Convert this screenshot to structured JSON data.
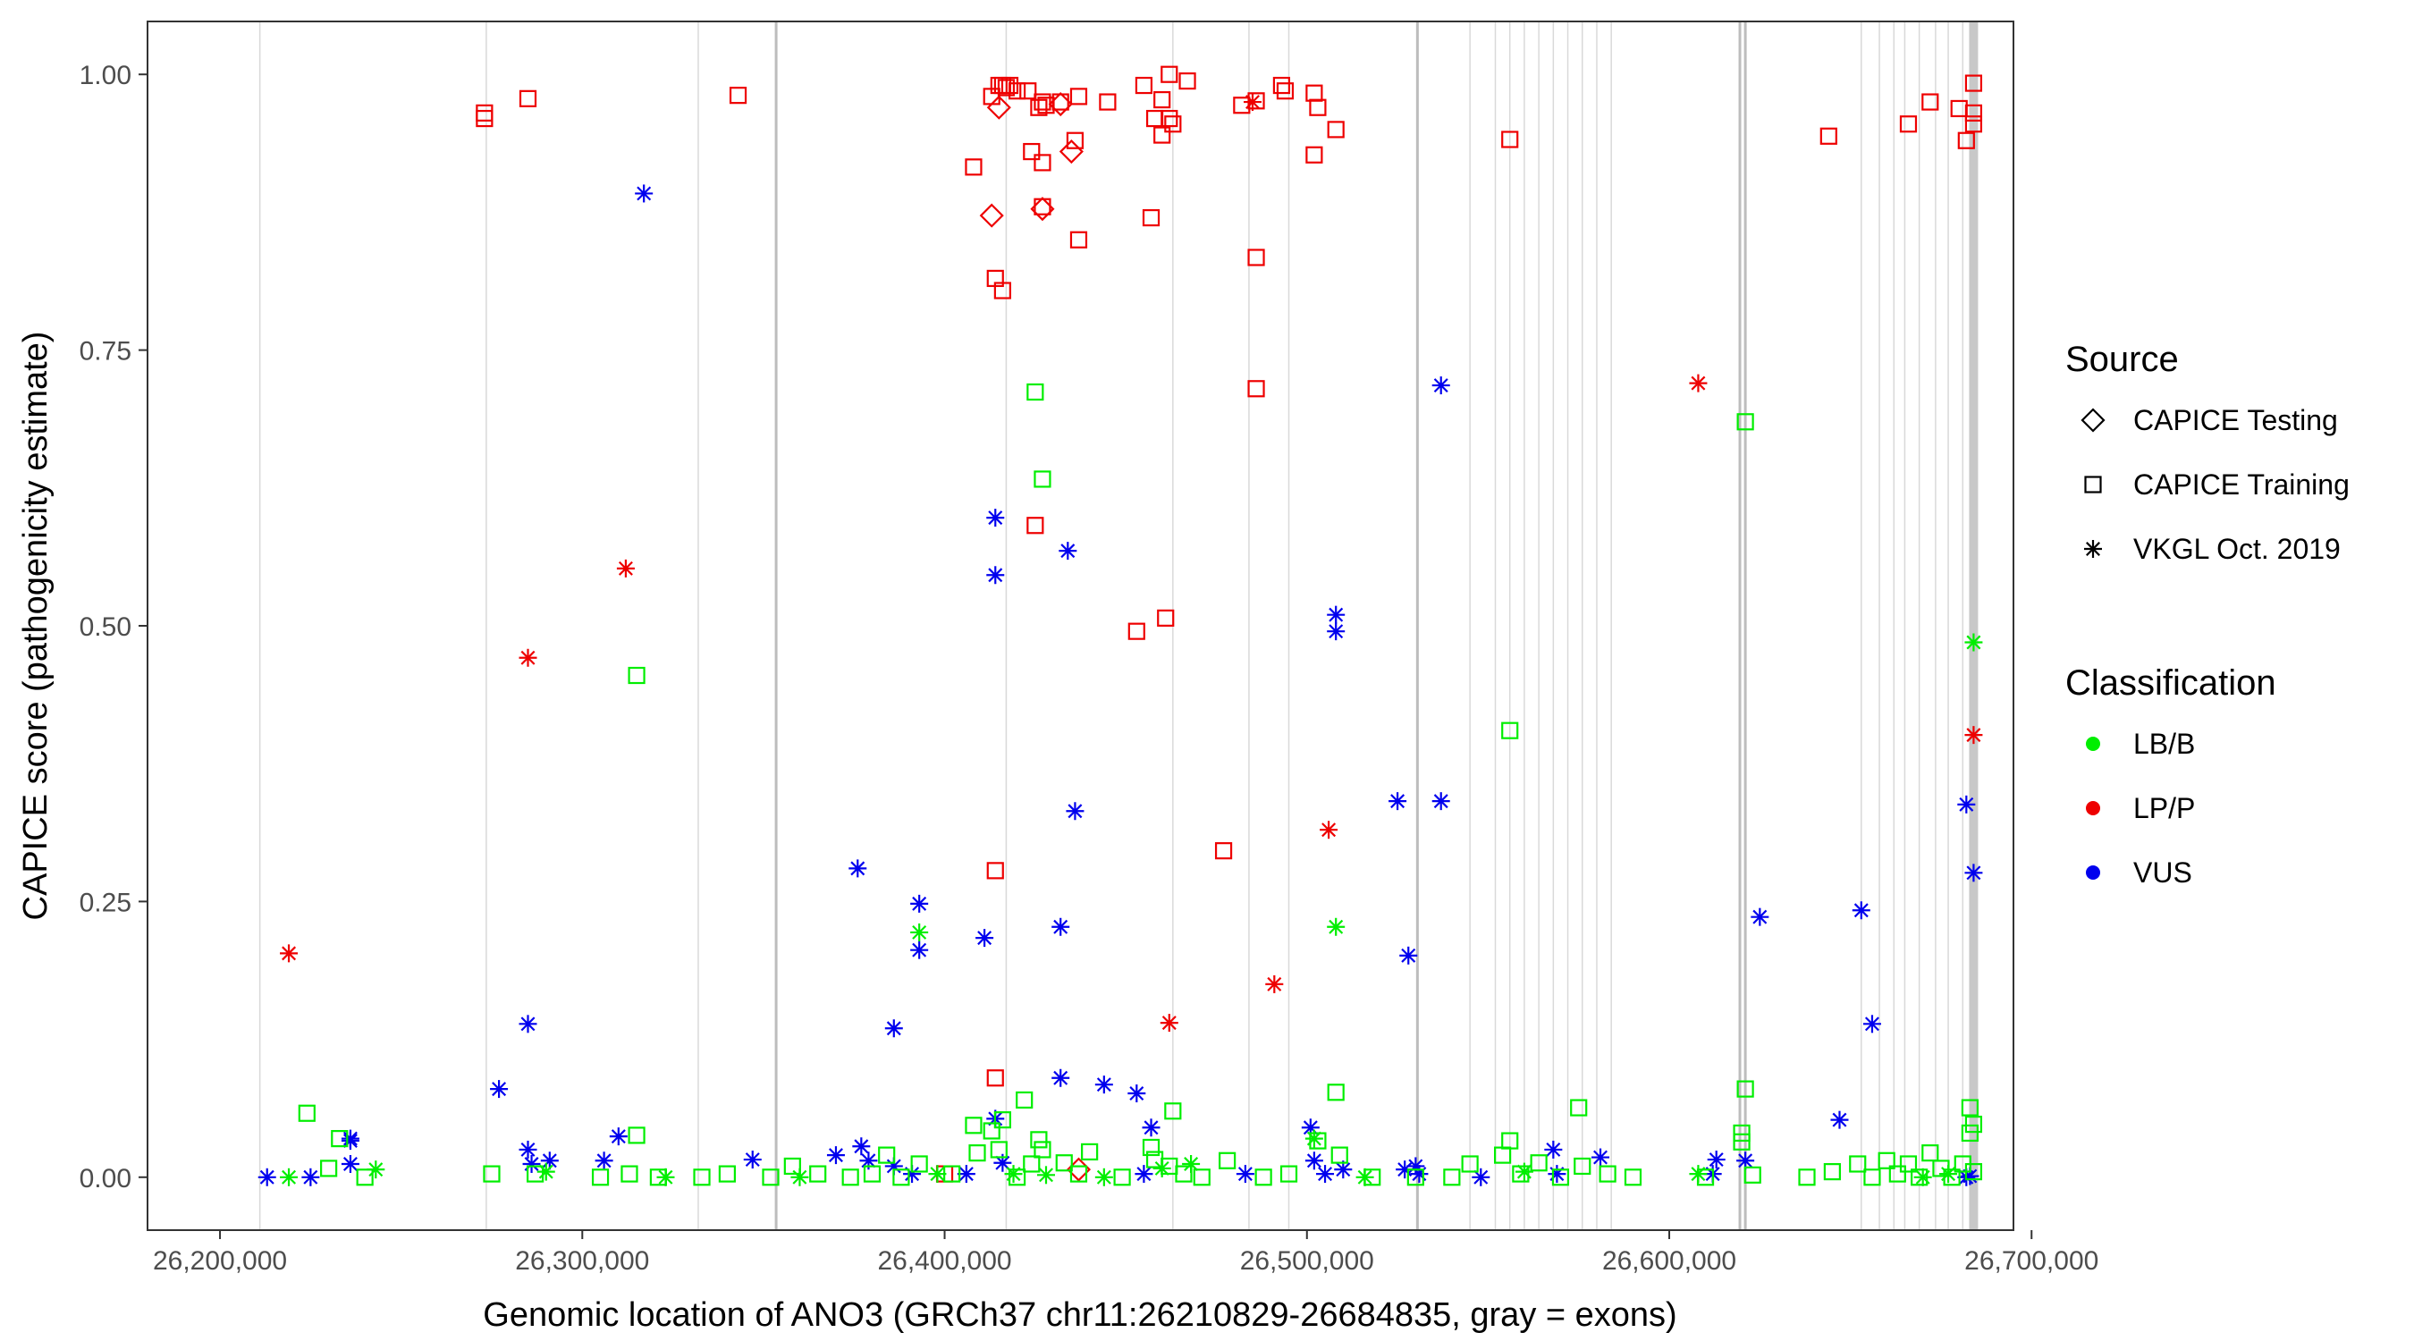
{
  "chart_data": {
    "type": "scatter",
    "title": "",
    "xlabel": "Genomic location of ANO3 (GRCh37 chr11:26210829-26684835, gray = exons)",
    "ylabel": "CAPICE score (pathogenicity estimate)",
    "xlim": [
      26180000,
      26695000
    ],
    "ylim": [
      -0.048,
      1.048
    ],
    "x_ticks": [
      {
        "value": 26200000,
        "label": "26,200,000"
      },
      {
        "value": 26300000,
        "label": "26,300,000"
      },
      {
        "value": 26400000,
        "label": "26,400,000"
      },
      {
        "value": 26500000,
        "label": "26,500,000"
      },
      {
        "value": 26600000,
        "label": "26,600,000"
      },
      {
        "value": 26700000,
        "label": "26,700,000"
      }
    ],
    "y_ticks": [
      {
        "value": 0,
        "label": "0.00"
      },
      {
        "value": 0.25,
        "label": "0.25"
      },
      {
        "value": 0.5,
        "label": "0.50"
      },
      {
        "value": 0.75,
        "label": "0.75"
      },
      {
        "value": 1,
        "label": "1.00"
      }
    ],
    "exons": [
      26211000,
      26273500,
      26332000,
      26353500,
      26417000,
      26463000,
      26484000,
      26495000,
      26530500,
      26545000,
      26552000,
      26556000,
      26560000,
      26564000,
      26568000,
      26572000,
      26576000,
      26580000,
      26584000,
      26619500,
      26621000,
      26653000,
      26658000,
      26662000,
      26665000,
      26669000,
      26673500,
      26677000,
      26681000,
      26684000
    ],
    "exon_colors": {
      "line": "#d9d9d9",
      "strong": "#bdbdbd",
      "band": "#c8c8c8"
    },
    "legend": {
      "source_title": "Source",
      "source_items": [
        {
          "shape": "diamond",
          "label": "CAPICE Testing"
        },
        {
          "shape": "square",
          "label": "CAPICE Training"
        },
        {
          "shape": "asterisk",
          "label": "VKGL Oct. 2019"
        }
      ],
      "class_title": "Classification",
      "class_items": [
        {
          "key": "LB/B",
          "label": "LB/B",
          "color": "#00ee00"
        },
        {
          "key": "LP/P",
          "label": "LP/P",
          "color": "#ee0000"
        },
        {
          "key": "VUS",
          "label": "VUS",
          "color": "#0000ee"
        }
      ]
    },
    "series": [
      {
        "name": "CAPICE Training LP/P",
        "source": "CAPICE Training",
        "classification": "LP/P",
        "shape": "square",
        "color": "#ee0000",
        "points": [
          [
            26273000,
            0.965
          ],
          [
            26273000,
            0.96
          ],
          [
            26285000,
            0.978
          ],
          [
            26343000,
            0.981
          ],
          [
            26408000,
            0.916
          ],
          [
            26413000,
            0.98
          ],
          [
            26415000,
            0.99
          ],
          [
            26416000,
            0.99
          ],
          [
            26417000,
            0.988
          ],
          [
            26418000,
            0.99
          ],
          [
            26420000,
            0.985
          ],
          [
            26423000,
            0.985
          ],
          [
            26424000,
            0.93
          ],
          [
            26426000,
            0.97
          ],
          [
            26427000,
            0.92
          ],
          [
            26427000,
            0.975
          ],
          [
            26428000,
            0.972
          ],
          [
            26427000,
            0.88
          ],
          [
            26432000,
            0.975
          ],
          [
            26436000,
            0.94
          ],
          [
            26437000,
            0.98
          ],
          [
            26437000,
            0.85
          ],
          [
            26445000,
            0.975
          ],
          [
            26455000,
            0.99
          ],
          [
            26457000,
            0.87
          ],
          [
            26458000,
            0.96
          ],
          [
            26460000,
            0.945
          ],
          [
            26460000,
            0.977
          ],
          [
            26462000,
            1.0
          ],
          [
            26463000,
            0.955
          ],
          [
            26462000,
            0.96
          ],
          [
            26467000,
            0.994
          ],
          [
            26482000,
            0.972
          ],
          [
            26486000,
            0.976
          ],
          [
            26493000,
            0.99
          ],
          [
            26494000,
            0.985
          ],
          [
            26502000,
            0.983
          ],
          [
            26502000,
            0.927
          ],
          [
            26503000,
            0.97
          ],
          [
            26508000,
            0.95
          ],
          [
            26556000,
            0.941
          ],
          [
            26644000,
            0.944
          ],
          [
            26666000,
            0.955
          ],
          [
            26672000,
            0.975
          ],
          [
            26680000,
            0.969
          ],
          [
            26682000,
            0.94
          ],
          [
            26684000,
            0.992
          ],
          [
            26684000,
            0.965
          ],
          [
            26684000,
            0.955
          ],
          [
            26414000,
            0.815
          ],
          [
            26416000,
            0.804
          ],
          [
            26486000,
            0.834
          ],
          [
            26486000,
            0.715
          ],
          [
            26425000,
            0.591
          ],
          [
            26453000,
            0.495
          ],
          [
            26461000,
            0.507
          ],
          [
            26477000,
            0.296
          ],
          [
            26414000,
            0.278
          ],
          [
            26414000,
            0.09
          ],
          [
            26400000,
            0.003
          ]
        ]
      },
      {
        "name": "CAPICE Testing LP/P",
        "source": "CAPICE Testing",
        "classification": "LP/P",
        "shape": "diamond",
        "color": "#ee0000",
        "points": [
          [
            26415000,
            0.97
          ],
          [
            26435000,
            0.93
          ],
          [
            26413000,
            0.872
          ],
          [
            26427000,
            0.878
          ],
          [
            26437000,
            0.007
          ],
          [
            26432000,
            0.973
          ]
        ]
      },
      {
        "name": "VKGL Oct. 2019 LP/P",
        "source": "VKGL Oct. 2019",
        "classification": "LP/P",
        "shape": "asterisk",
        "color": "#ee0000",
        "points": [
          [
            26485000,
            0.975
          ],
          [
            26312000,
            0.552
          ],
          [
            26285000,
            0.471
          ],
          [
            26219000,
            0.203
          ],
          [
            26608000,
            0.72
          ],
          [
            26506000,
            0.315
          ],
          [
            26491000,
            0.175
          ],
          [
            26462000,
            0.14
          ],
          [
            26684000,
            0.401
          ]
        ]
      },
      {
        "name": "VKGL Oct. 2019 VUS",
        "source": "VKGL Oct. 2019",
        "classification": "VUS",
        "shape": "asterisk",
        "color": "#0000ee",
        "points": [
          [
            26317000,
            0.892
          ],
          [
            26537000,
            0.718
          ],
          [
            26414000,
            0.598
          ],
          [
            26434000,
            0.568
          ],
          [
            26414000,
            0.546
          ],
          [
            26508000,
            0.51
          ],
          [
            26508000,
            0.495
          ],
          [
            26436000,
            0.332
          ],
          [
            26525000,
            0.341
          ],
          [
            26537000,
            0.341
          ],
          [
            26682000,
            0.338
          ],
          [
            26684000,
            0.276
          ],
          [
            26376000,
            0.28
          ],
          [
            26393000,
            0.248
          ],
          [
            26393000,
            0.206
          ],
          [
            26411000,
            0.217
          ],
          [
            26432000,
            0.227
          ],
          [
            26528000,
            0.201
          ],
          [
            26625000,
            0.236
          ],
          [
            26653000,
            0.242
          ],
          [
            26386000,
            0.135
          ],
          [
            26285000,
            0.139
          ],
          [
            26656000,
            0.139
          ],
          [
            26277000,
            0.08
          ],
          [
            26432000,
            0.09
          ],
          [
            26444000,
            0.084
          ],
          [
            26453000,
            0.076
          ],
          [
            26414000,
            0.053
          ],
          [
            26457000,
            0.045
          ],
          [
            26647000,
            0.052
          ],
          [
            26501000,
            0.045
          ],
          [
            26236000,
            0.035
          ],
          [
            26236000,
            0.033
          ],
          [
            26310000,
            0.037
          ],
          [
            26285000,
            0.025
          ],
          [
            26213000,
            0.0
          ],
          [
            26225000,
            0.0
          ],
          [
            26236000,
            0.012
          ],
          [
            26286000,
            0.012
          ],
          [
            26291000,
            0.015
          ],
          [
            26306000,
            0.015
          ],
          [
            26347000,
            0.016
          ],
          [
            26370000,
            0.02
          ],
          [
            26377000,
            0.028
          ],
          [
            26379000,
            0.015
          ],
          [
            26386000,
            0.01
          ],
          [
            26391000,
            0.003
          ],
          [
            26406000,
            0.003
          ],
          [
            26416000,
            0.013
          ],
          [
            26455000,
            0.003
          ],
          [
            26483000,
            0.003
          ],
          [
            26502000,
            0.015
          ],
          [
            26505000,
            0.003
          ],
          [
            26510000,
            0.007
          ],
          [
            26527000,
            0.007
          ],
          [
            26530000,
            0.01
          ],
          [
            26531000,
            0.003
          ],
          [
            26548000,
            0.0
          ],
          [
            26568000,
            0.025
          ],
          [
            26569000,
            0.003
          ],
          [
            26581000,
            0.018
          ],
          [
            26613000,
            0.016
          ],
          [
            26612000,
            0.003
          ],
          [
            26621000,
            0.015
          ],
          [
            26682000,
            0.0
          ],
          [
            26683000,
            0.001
          ]
        ]
      },
      {
        "name": "VKGL Oct. 2019 LB/B",
        "source": "VKGL Oct. 2019",
        "classification": "LB/B",
        "shape": "asterisk",
        "color": "#00ee00",
        "points": [
          [
            26393000,
            0.222
          ],
          [
            26508000,
            0.227
          ],
          [
            26684000,
            0.485
          ],
          [
            26219000,
            0.0
          ],
          [
            26243000,
            0.007
          ],
          [
            26290000,
            0.005
          ],
          [
            26323000,
            0.0
          ],
          [
            26360000,
            0.0
          ],
          [
            26398000,
            0.003
          ],
          [
            26419000,
            0.003
          ],
          [
            26428000,
            0.002
          ],
          [
            26444000,
            0.0
          ],
          [
            26460000,
            0.008
          ],
          [
            26468000,
            0.012
          ],
          [
            26502000,
            0.035
          ],
          [
            26516000,
            0.0
          ],
          [
            26560000,
            0.005
          ],
          [
            26608000,
            0.003
          ],
          [
            26670000,
            0.0
          ],
          [
            26677000,
            0.003
          ]
        ]
      },
      {
        "name": "CAPICE Training LB/B",
        "source": "CAPICE Training",
        "classification": "LB/B",
        "shape": "square",
        "color": "#00ee00",
        "points": [
          [
            26425000,
            0.712
          ],
          [
            26621000,
            0.685
          ],
          [
            26427000,
            0.633
          ],
          [
            26315000,
            0.455
          ],
          [
            26556000,
            0.405
          ],
          [
            26224000,
            0.058
          ],
          [
            26463000,
            0.06
          ],
          [
            26508000,
            0.077
          ],
          [
            26575000,
            0.063
          ],
          [
            26621000,
            0.08
          ],
          [
            26683000,
            0.063
          ],
          [
            26684000,
            0.048
          ],
          [
            26233000,
            0.035
          ],
          [
            26315000,
            0.038
          ],
          [
            26408000,
            0.047
          ],
          [
            26413000,
            0.042
          ],
          [
            26416000,
            0.052
          ],
          [
            26422000,
            0.07
          ],
          [
            26426000,
            0.034
          ],
          [
            26440000,
            0.023
          ],
          [
            26457000,
            0.027
          ],
          [
            26620000,
            0.04
          ],
          [
            26556000,
            0.033
          ],
          [
            26230000,
            0.008
          ],
          [
            26240000,
            0.0
          ],
          [
            26275000,
            0.003
          ],
          [
            26287000,
            0.003
          ],
          [
            26305000,
            0.0
          ],
          [
            26313000,
            0.003
          ],
          [
            26321000,
            0.0
          ],
          [
            26333000,
            0.0
          ],
          [
            26340000,
            0.003
          ],
          [
            26352000,
            0.0
          ],
          [
            26358000,
            0.01
          ],
          [
            26365000,
            0.003
          ],
          [
            26374000,
            0.0
          ],
          [
            26380000,
            0.003
          ],
          [
            26384000,
            0.02
          ],
          [
            26388000,
            0.0
          ],
          [
            26393000,
            0.012
          ],
          [
            26402000,
            0.003
          ],
          [
            26409000,
            0.022
          ],
          [
            26415000,
            0.025
          ],
          [
            26420000,
            0.0
          ],
          [
            26424000,
            0.012
          ],
          [
            26427000,
            0.025
          ],
          [
            26433000,
            0.013
          ],
          [
            26437000,
            0.003
          ],
          [
            26449000,
            0.0
          ],
          [
            26458000,
            0.016
          ],
          [
            26462000,
            0.01
          ],
          [
            26466000,
            0.003
          ],
          [
            26471000,
            0.0
          ],
          [
            26478000,
            0.015
          ],
          [
            26488000,
            0.0
          ],
          [
            26495000,
            0.003
          ],
          [
            26503000,
            0.033
          ],
          [
            26509000,
            0.02
          ],
          [
            26518000,
            0.0
          ],
          [
            26530000,
            0.0
          ],
          [
            26540000,
            0.0
          ],
          [
            26545000,
            0.012
          ],
          [
            26554000,
            0.02
          ],
          [
            26559000,
            0.003
          ],
          [
            26564000,
            0.013
          ],
          [
            26570000,
            0.0
          ],
          [
            26576000,
            0.01
          ],
          [
            26583000,
            0.003
          ],
          [
            26590000,
            0.0
          ],
          [
            26610000,
            0.0
          ],
          [
            26620000,
            0.032
          ],
          [
            26623000,
            0.002
          ],
          [
            26638000,
            0.0
          ],
          [
            26645000,
            0.005
          ],
          [
            26652000,
            0.012
          ],
          [
            26656000,
            0.0
          ],
          [
            26660000,
            0.015
          ],
          [
            26663000,
            0.003
          ],
          [
            26666000,
            0.012
          ],
          [
            26669000,
            0.0
          ],
          [
            26672000,
            0.022
          ],
          [
            26675000,
            0.008
          ],
          [
            26678000,
            0.0
          ],
          [
            26681000,
            0.012
          ],
          [
            26683000,
            0.04
          ],
          [
            26684000,
            0.005
          ]
        ]
      }
    ]
  }
}
